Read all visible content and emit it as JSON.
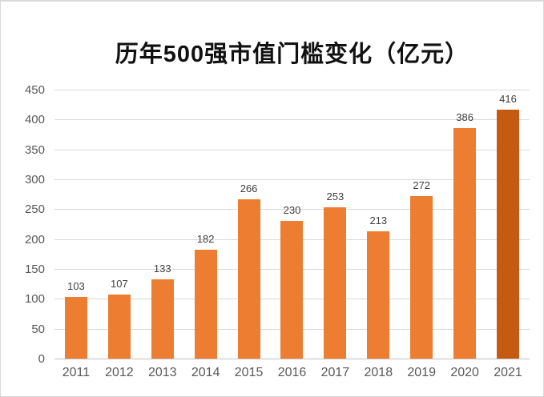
{
  "chart_data": {
    "type": "bar",
    "title": "历年500强市值门槛变化（亿元）",
    "categories": [
      "2011",
      "2012",
      "2013",
      "2014",
      "2015",
      "2016",
      "2017",
      "2018",
      "2019",
      "2020",
      "2021"
    ],
    "values": [
      103,
      107,
      133,
      182,
      266,
      230,
      253,
      213,
      272,
      386,
      416
    ],
    "xlabel": "",
    "ylabel": "",
    "ylim": [
      0,
      450
    ],
    "yticks": [
      0,
      50,
      100,
      150,
      200,
      250,
      300,
      350,
      400,
      450
    ],
    "grid": true,
    "legend": false,
    "value_labels_shown": true,
    "highlight_index": 10,
    "colors": {
      "bar": "#ED7D31",
      "bar_highlight": "#C55A11",
      "gridline": "#D9D9D9",
      "axis_line": "#BFBFBF",
      "tick_label": "#595959",
      "value_label": "#404040",
      "title": "#111111",
      "border": "#D9D9D9",
      "background": "#FFFFFF"
    }
  }
}
